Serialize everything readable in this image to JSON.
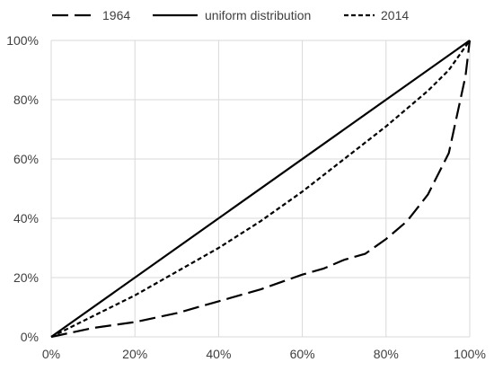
{
  "chart_data": {
    "type": "line",
    "xlim": [
      0,
      100
    ],
    "ylim": [
      0,
      100
    ],
    "x_ticks": [
      "0%",
      "20%",
      "40%",
      "60%",
      "80%",
      "100%"
    ],
    "y_ticks": [
      "0%",
      "20%",
      "40%",
      "60%",
      "80%",
      "100%"
    ],
    "grid": true,
    "legend_position": "top",
    "series": [
      {
        "name": "1964",
        "style": "long-dash",
        "color": "#000000",
        "points": [
          [
            0,
            0
          ],
          [
            10,
            3
          ],
          [
            20,
            5
          ],
          [
            30,
            8
          ],
          [
            40,
            12
          ],
          [
            50,
            16
          ],
          [
            60,
            21
          ],
          [
            65,
            23
          ],
          [
            70,
            26
          ],
          [
            75,
            28
          ],
          [
            80,
            33
          ],
          [
            85,
            39
          ],
          [
            90,
            48
          ],
          [
            95,
            62
          ],
          [
            97,
            75
          ],
          [
            99,
            88
          ],
          [
            100,
            100
          ]
        ]
      },
      {
        "name": "uniform distribution",
        "style": "solid",
        "color": "#000000",
        "points": [
          [
            0,
            0
          ],
          [
            100,
            100
          ]
        ]
      },
      {
        "name": "2014",
        "style": "short-dash",
        "color": "#000000",
        "points": [
          [
            0,
            0
          ],
          [
            10,
            7
          ],
          [
            20,
            14
          ],
          [
            30,
            22
          ],
          [
            40,
            30
          ],
          [
            50,
            39
          ],
          [
            60,
            49
          ],
          [
            70,
            60
          ],
          [
            80,
            71
          ],
          [
            90,
            83
          ],
          [
            95,
            90
          ],
          [
            100,
            100
          ]
        ]
      }
    ]
  }
}
